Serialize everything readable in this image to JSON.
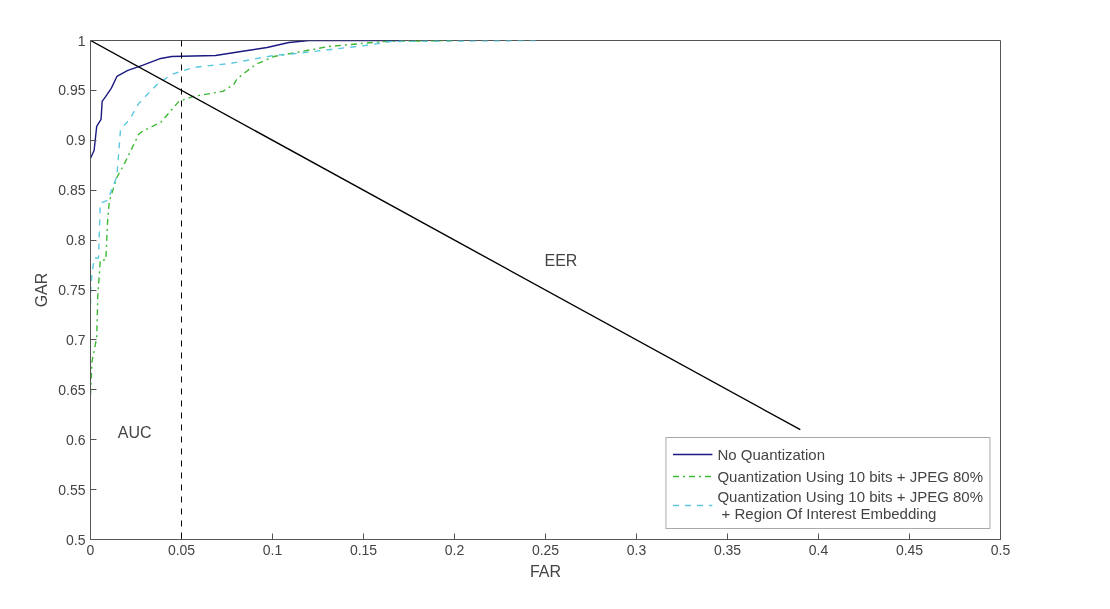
{
  "chart_data": {
    "type": "line",
    "xlabel": "FAR",
    "ylabel": "GAR",
    "xlim": [
      0,
      0.5
    ],
    "ylim": [
      0.5,
      1
    ],
    "xticks": [
      0,
      0.05,
      0.1,
      0.15,
      0.2,
      0.25,
      0.3,
      0.35,
      0.4,
      0.45,
      0.5
    ],
    "yticks": [
      0.5,
      0.55,
      0.6,
      0.65,
      0.7,
      0.75,
      0.8,
      0.85,
      0.9,
      0.95,
      1
    ],
    "grid": false,
    "legend": "bottom right",
    "marker": "none",
    "series": [
      {
        "name": "No Quantization",
        "color": "#1a1a80",
        "line_style": "solid",
        "x": [
          0,
          0.002,
          0.0034,
          0.0058,
          0.0064,
          0.0084,
          0.0114,
          0.0145,
          0.0205,
          0.0285,
          0.0386,
          0.0446,
          0.0687,
          0.0827,
          0.097,
          0.109,
          0.12,
          0.17
        ],
        "values": [
          0.882,
          0.89,
          0.914,
          0.921,
          0.939,
          0.944,
          0.952,
          0.964,
          0.97,
          0.975,
          0.982,
          0.984,
          0.985,
          0.989,
          0.993,
          0.998,
          1,
          1
        ]
      },
      {
        "name": "Quantization Using 10 bits + JPEG 80%",
        "color": "#3cb832",
        "line_style": "dashdot",
        "x": [
          0,
          0.0008,
          0.0034,
          0.004,
          0.0054,
          0.0084,
          0.0095,
          0.0104,
          0.0145,
          0.0185,
          0.0265,
          0.0285,
          0.0386,
          0.0486,
          0.0566,
          0.0727,
          0.0787,
          0.0807,
          0.0908,
          0.1008,
          0.131,
          0.161,
          0.2
        ],
        "values": [
          0.645,
          0.678,
          0.702,
          0.744,
          0.78,
          0.78,
          0.823,
          0.839,
          0.863,
          0.876,
          0.906,
          0.909,
          0.918,
          0.939,
          0.944,
          0.949,
          0.956,
          0.962,
          0.976,
          0.984,
          0.994,
          0.999,
          1
        ]
      },
      {
        "name": "Quantization Using 10 bits + JPEG 80%\n + Region Of Interest Embedding",
        "color": "#5cc8e0",
        "line_style": "dashed",
        "x": [
          0,
          0.0002,
          0.002,
          0.0044,
          0.0054,
          0.0094,
          0.0145,
          0.0165,
          0.0215,
          0.0265,
          0.0366,
          0.0446,
          0.0566,
          0.0767,
          0.1006,
          0.113,
          0.151,
          0.165,
          0.245
        ],
        "values": [
          0.735,
          0.756,
          0.782,
          0.782,
          0.837,
          0.84,
          0.864,
          0.911,
          0.921,
          0.937,
          0.956,
          0.966,
          0.973,
          0.977,
          0.985,
          0.987,
          0.995,
          0.999,
          1
        ]
      },
      {
        "color": "#000000",
        "line_style": "solid",
        "x": [
          0,
          0.39
        ],
        "values": [
          1,
          0.61
        ]
      }
    ],
    "ref_lines": [
      {
        "axis": "x",
        "value": 0.05,
        "color": "#000000",
        "line_style": "dashed"
      }
    ],
    "annotations": [
      "EER",
      "AUC"
    ]
  }
}
